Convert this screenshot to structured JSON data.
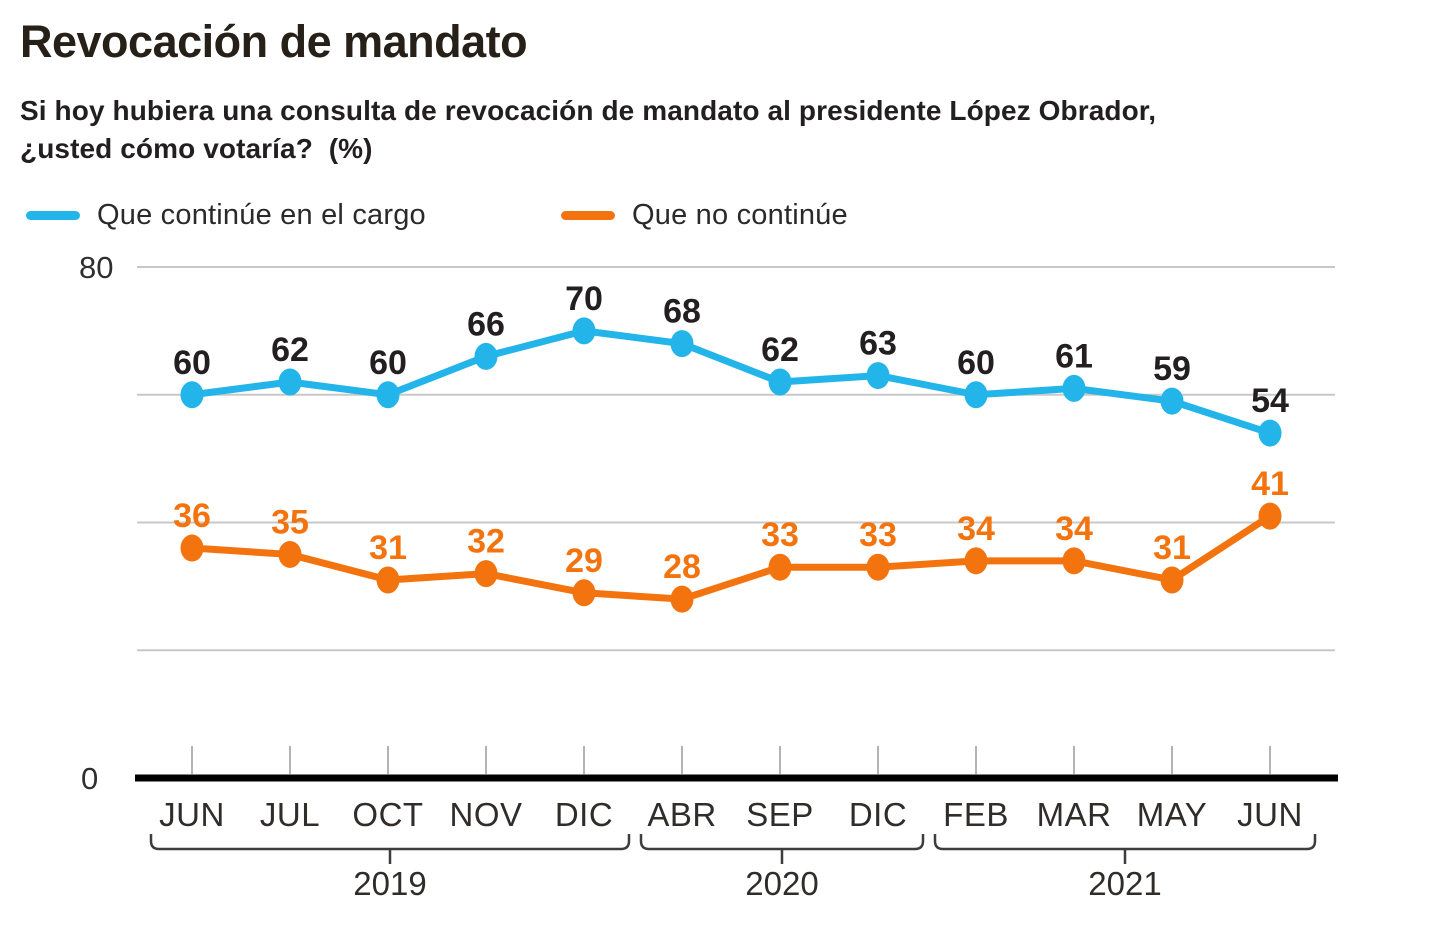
{
  "header": {
    "title": "Revocación de mandato",
    "subtitle_line1": "Si hoy hubiera una consulta de revocación de mandato al presidente López Obrador,",
    "subtitle_line2": "¿usted cómo votaría?  (%)"
  },
  "legend": {
    "items": [
      {
        "label": "Que continúe en el cargo",
        "color": "#23b5ea"
      },
      {
        "label": "Que no continúe",
        "color": "#f3740e"
      }
    ]
  },
  "chart_data": {
    "type": "line",
    "title": "Revocación de mandato",
    "subtitle": "Si hoy hubiera una consulta de revocación de mandato al presidente López Obrador, ¿usted cómo votaría? (%)",
    "categories": [
      "JUN",
      "JUL",
      "OCT",
      "NOV",
      "DIC",
      "ABR",
      "SEP",
      "DIC",
      "FEB",
      "MAR",
      "MAY",
      "JUN"
    ],
    "year_groups": [
      {
        "label": "2019",
        "from": 0,
        "to": 4
      },
      {
        "label": "2020",
        "from": 5,
        "to": 7
      },
      {
        "label": "2021",
        "from": 8,
        "to": 11
      }
    ],
    "series": [
      {
        "name": "Que continúe en el cargo",
        "color": "#23b5ea",
        "label_color": "#231f20",
        "values": [
          60,
          62,
          60,
          66,
          70,
          68,
          62,
          63,
          60,
          61,
          59,
          54
        ]
      },
      {
        "name": "Que no continúe",
        "color": "#f3740e",
        "label_color": "#f3740e",
        "values": [
          36,
          35,
          31,
          32,
          29,
          28,
          33,
          33,
          34,
          34,
          31,
          41
        ]
      }
    ],
    "ylim": [
      0,
      80
    ],
    "y_axis_labels": [
      "80",
      "0"
    ],
    "gridline_values": [
      80,
      60,
      40,
      20
    ],
    "grid": "horizontal-only",
    "legend_position": "top",
    "value_labels": "above points"
  },
  "colors": {
    "text": "#231f20",
    "axis_label": "#2f2f2f",
    "month_label": "#302c2a",
    "grid": "#c8c8c8",
    "tick": "#b3b3b3",
    "axis": "#000000",
    "bracket": "#3d3d3d"
  }
}
